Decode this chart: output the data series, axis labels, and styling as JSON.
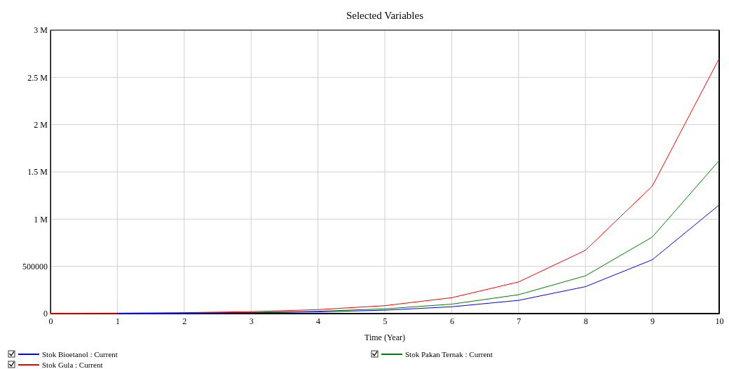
{
  "chart_data": {
    "type": "line",
    "title": "Selected Variables",
    "xlabel": "Time (Year)",
    "x": [
      0,
      1,
      2,
      3,
      4,
      5,
      6,
      7,
      8,
      9,
      10
    ],
    "xlim": [
      0,
      10
    ],
    "xticks": [
      0,
      1,
      2,
      3,
      4,
      5,
      6,
      7,
      8,
      9,
      10
    ],
    "ylim": [
      0,
      3000000
    ],
    "yticks": [
      0,
      500000,
      {
        "value": 1000000,
        "label": "1 M"
      },
      {
        "value": 1500000,
        "label": "1.5 M"
      },
      {
        "value": 2000000,
        "label": "2 M"
      },
      {
        "value": 2500000,
        "label": "2.5 M"
      },
      {
        "value": 3000000,
        "label": "3 M"
      }
    ],
    "grid": true,
    "legend": "bottom",
    "series": [
      {
        "name": "Stok Bioetanol : Current",
        "color": "#0000ff",
        "values": [
          null,
          2000,
          5000,
          9000,
          18000,
          36000,
          72000,
          140000,
          285000,
          570000,
          1150000
        ]
      },
      {
        "name": "Stok Gula : Current",
        "color": "#ff0000",
        "values": [
          3000,
          5000,
          10000,
          21000,
          42000,
          84000,
          168000,
          335000,
          670000,
          1350000,
          2700000
        ]
      },
      {
        "name": "Stok Pakan Ternak : Current",
        "color": "#008000",
        "values": [
          null,
          null,
          6000,
          12000,
          25000,
          50000,
          100000,
          200000,
          400000,
          810000,
          1620000
        ]
      }
    ]
  }
}
